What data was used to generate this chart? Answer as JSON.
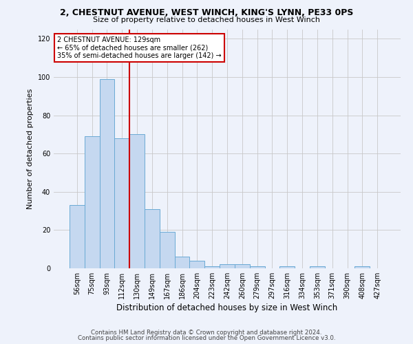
{
  "title1": "2, CHESTNUT AVENUE, WEST WINCH, KING'S LYNN, PE33 0PS",
  "title2": "Size of property relative to detached houses in West Winch",
  "xlabel": "Distribution of detached houses by size in West Winch",
  "ylabel": "Number of detached properties",
  "bin_labels": [
    "56sqm",
    "75sqm",
    "93sqm",
    "112sqm",
    "130sqm",
    "149sqm",
    "167sqm",
    "186sqm",
    "204sqm",
    "223sqm",
    "242sqm",
    "260sqm",
    "279sqm",
    "297sqm",
    "316sqm",
    "334sqm",
    "353sqm",
    "371sqm",
    "390sqm",
    "408sqm",
    "427sqm"
  ],
  "bar_values": [
    33,
    69,
    99,
    68,
    70,
    31,
    19,
    6,
    4,
    1,
    2,
    2,
    1,
    0,
    1,
    0,
    1,
    0,
    0,
    1,
    0
  ],
  "bar_color": "#c5d8f0",
  "bar_edge_color": "#6aaad4",
  "vline_color": "#cc0000",
  "annotation_text": "2 CHESTNUT AVENUE: 129sqm\n← 65% of detached houses are smaller (262)\n35% of semi-detached houses are larger (142) →",
  "annotation_box_color": "#ffffff",
  "annotation_box_edge": "#cc0000",
  "footnote1": "Contains HM Land Registry data © Crown copyright and database right 2024.",
  "footnote2": "Contains public sector information licensed under the Open Government Licence v3.0.",
  "ylim": [
    0,
    125
  ],
  "yticks": [
    0,
    20,
    40,
    60,
    80,
    100,
    120
  ],
  "background_color": "#eef2fb",
  "grid_color": "#c8c8c8",
  "title1_fontsize": 9,
  "title2_fontsize": 8,
  "ylabel_fontsize": 8,
  "xlabel_fontsize": 8.5
}
